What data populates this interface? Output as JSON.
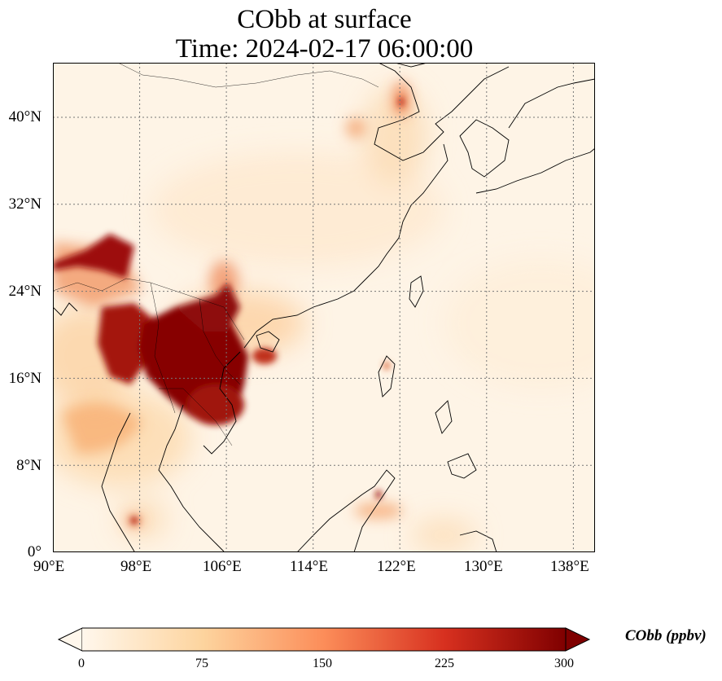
{
  "title": {
    "line1": "CObb at surface",
    "line2": "Time: 2024-02-17 06:00:00"
  },
  "map": {
    "lon_range": [
      90,
      140
    ],
    "lat_range": [
      0,
      45
    ],
    "x_ticks": [
      "90°E",
      "98°E",
      "106°E",
      "114°E",
      "122°E",
      "130°E",
      "138°E"
    ],
    "x_tick_values": [
      90,
      98,
      106,
      114,
      122,
      130,
      138
    ],
    "y_ticks": [
      "0°",
      "8°N",
      "16°N",
      "24°N",
      "32°N",
      "40°N"
    ],
    "y_tick_values": [
      0,
      8,
      16,
      24,
      32,
      40
    ],
    "gridlines": "dotted"
  },
  "colorbar": {
    "label": "CObb (ppbv)",
    "ticks": [
      "0",
      "75",
      "150",
      "225",
      "300"
    ],
    "tick_values": [
      0,
      75,
      150,
      225,
      300
    ],
    "range": [
      0,
      300
    ],
    "colormap": "OrRd",
    "colors": [
      "#fff7ec",
      "#fdd49e",
      "#fc8d59",
      "#d7301f",
      "#7f0000"
    ]
  }
}
